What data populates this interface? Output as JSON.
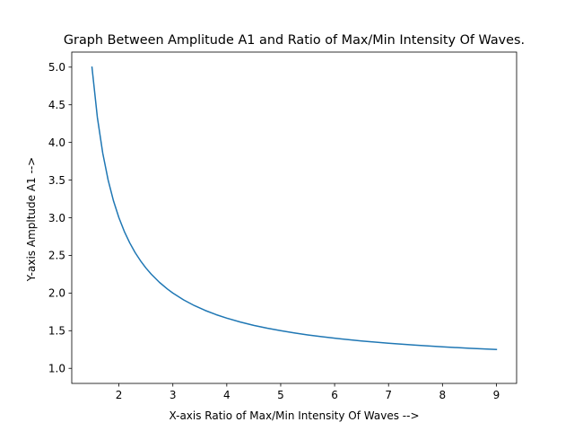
{
  "chart_data": {
    "type": "line",
    "title": "Graph Between Amplitude A1 and Ratio of Max/Min Intensity Of Waves.",
    "xlabel": "X-axis     Ratio of Max/Min Intensity Of Waves -->",
    "ylabel": "Y-axis          Ampltude A1 -->",
    "xlim": [
      1.125,
      9.375
    ],
    "ylim": [
      0.8,
      5.2
    ],
    "xticks": [
      2,
      3,
      4,
      5,
      6,
      7,
      8,
      9
    ],
    "yticks": [
      1.0,
      1.5,
      2.0,
      2.5,
      3.0,
      3.5,
      4.0,
      4.5,
      5.0
    ],
    "yticklabels": [
      "1.0",
      "1.5",
      "2.0",
      "2.5",
      "3.0",
      "3.5",
      "4.0",
      "4.5",
      "5.0"
    ],
    "grid": false,
    "series": [
      {
        "color": "#1f77b4",
        "x": [
          1.5,
          1.6,
          1.7,
          1.8,
          1.9,
          2.0,
          2.1,
          2.2,
          2.3,
          2.4,
          2.5,
          2.6,
          2.75,
          2.9,
          3.0,
          3.2,
          3.4,
          3.6,
          3.8,
          4.0,
          4.25,
          4.5,
          4.75,
          5.0,
          5.25,
          5.5,
          5.75,
          6.0,
          6.5,
          7.0,
          7.5,
          8.0,
          8.5,
          9.0
        ],
        "y": [
          5.0,
          4.333,
          3.857,
          3.5,
          3.222,
          3.0,
          2.818,
          2.667,
          2.538,
          2.429,
          2.333,
          2.25,
          2.143,
          2.053,
          2.0,
          1.909,
          1.833,
          1.769,
          1.714,
          1.667,
          1.615,
          1.571,
          1.533,
          1.5,
          1.471,
          1.444,
          1.421,
          1.4,
          1.364,
          1.333,
          1.308,
          1.286,
          1.267,
          1.25
        ]
      }
    ]
  }
}
